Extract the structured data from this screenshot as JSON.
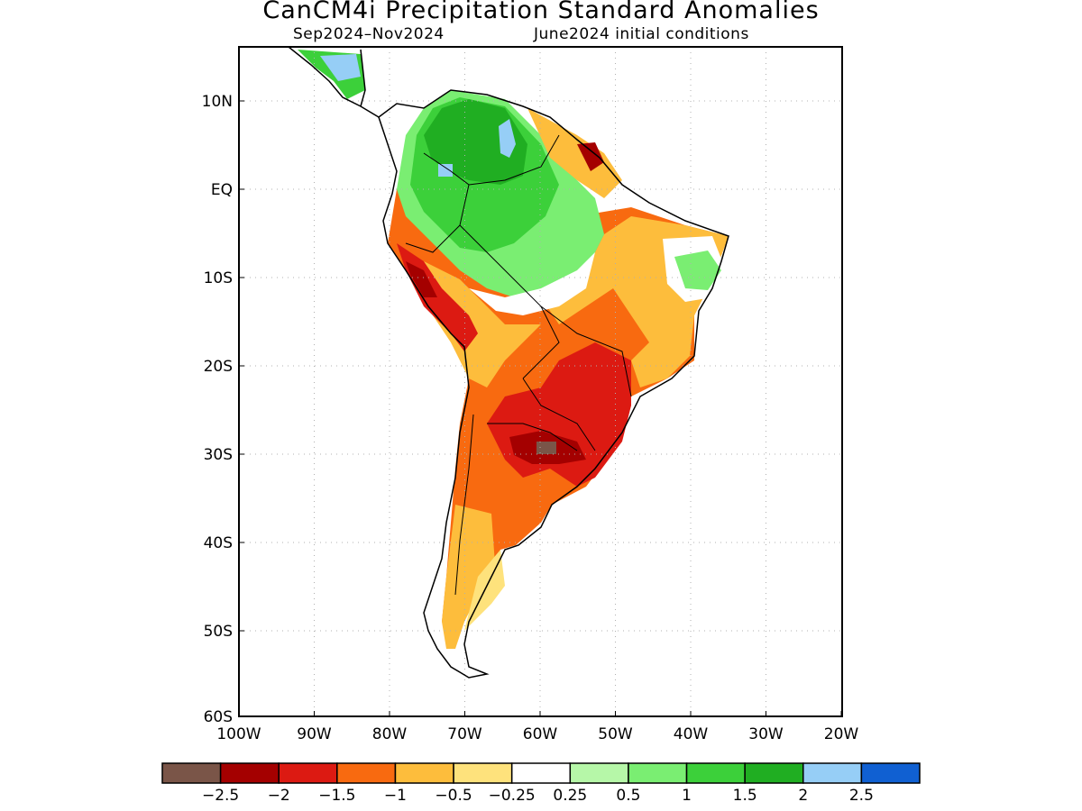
{
  "title": "CanCM4i Precipitation Standard Anomalies",
  "subtitle_period": "Sep2024–Nov2024",
  "subtitle_init": "June2024 initial conditions",
  "axes": {
    "lon_ticks": [
      "100W",
      "90W",
      "80W",
      "70W",
      "60W",
      "50W",
      "40W",
      "30W",
      "20W"
    ],
    "lat_ticks": [
      "10N",
      "EQ",
      "10S",
      "20S",
      "30S",
      "40S",
      "50S",
      "60S"
    ],
    "lon_range": [
      -100,
      -20
    ],
    "lat_range": [
      -60,
      16
    ],
    "grid": "dotted"
  },
  "colorbar": {
    "colors": [
      "#7a5548",
      "#a40000",
      "#dc1a12",
      "#f86a10",
      "#fdbd3c",
      "#fee27c",
      "#ffffff",
      "#b6f7a8",
      "#7aee72",
      "#3cd03a",
      "#20ae22",
      "#96cef6",
      "#1060d2"
    ],
    "labels": [
      "−2.5",
      "−2",
      "−1.5",
      "−1",
      "−0.5",
      "−0.25",
      "0.25",
      "0.5",
      "1",
      "1.5",
      "2",
      "2.5"
    ]
  },
  "map_data": {
    "variable": "Precipitation standard anomaly",
    "region": "South America",
    "anomaly_zones": [
      {
        "level": "+1.5",
        "area": "Colombia / Venezuela",
        "color": "#20ae22"
      },
      {
        "level": "+1",
        "area": "Western Amazon (Peru / Brazil)",
        "color": "#3cd03a"
      },
      {
        "level": "+0.5",
        "area": "Southern Amazon / Bolivia",
        "color": "#7aee72"
      },
      {
        "level": "+0.5",
        "area": "Northeast Brazil coast",
        "color": "#7aee72"
      },
      {
        "level": "+2",
        "area": "Venezuela llanos / NE Colombia",
        "color": "#96cef6"
      },
      {
        "level": "-0.5",
        "area": "Central and Eastern Brazil",
        "color": "#fdbd3c"
      },
      {
        "level": "-1",
        "area": "Central South America / Southern Brazil",
        "color": "#f86a10"
      },
      {
        "level": "-1.5",
        "area": "Paraguay / Southern Brazil / Uruguay",
        "color": "#dc1a12"
      },
      {
        "level": "-2",
        "area": "Northern Argentina / Uruguay",
        "color": "#a40000"
      },
      {
        "level": "-2.5",
        "area": "Northeast Argentina",
        "color": "#7a5548"
      },
      {
        "level": "-1.5",
        "area": "Coastal Peru",
        "color": "#dc1a12"
      },
      {
        "level": "-2",
        "area": "French Guiana / Amapa",
        "color": "#a40000"
      },
      {
        "level": "-0.25",
        "area": "Patagonia",
        "color": "#fee27c"
      }
    ]
  }
}
